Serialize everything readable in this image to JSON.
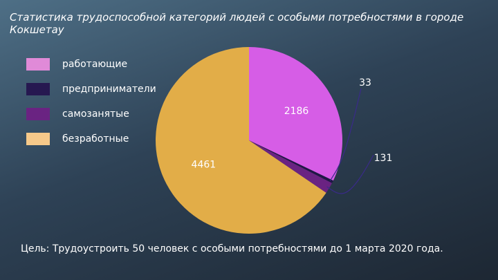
{
  "slide": {
    "title": "Статистика трудоспособной категорий людей с особыми потребностями в городе Кокшетау",
    "goal": "Цель: Трудоустроить 50 человек с особыми потребностями до 1 марта 2020 года."
  },
  "chart_data": {
    "type": "pie",
    "title": "Статистика трудоспособной категорий людей с особыми потребностями в городе Кокшетау",
    "legend_position": "left",
    "slices": [
      {
        "name": "работающие",
        "value": 2186,
        "color": "#d65de6",
        "label": "2186"
      },
      {
        "name": "предприниматели",
        "value": 33,
        "color": "#1f1746",
        "label": "33"
      },
      {
        "name": "самозанятые",
        "value": 131,
        "color": "#6a2382",
        "label": "131"
      },
      {
        "name": "безработные",
        "value": 4461,
        "color": "#e2ad48",
        "label": "4461"
      }
    ]
  },
  "legend": {
    "items": [
      {
        "label": "работающие",
        "color": "#e08ad8"
      },
      {
        "label": "предприниматели",
        "color": "#261850"
      },
      {
        "label": "самозанятые",
        "color": "#6a2382"
      },
      {
        "label": "безработные",
        "color": "#f6c98a"
      }
    ]
  }
}
